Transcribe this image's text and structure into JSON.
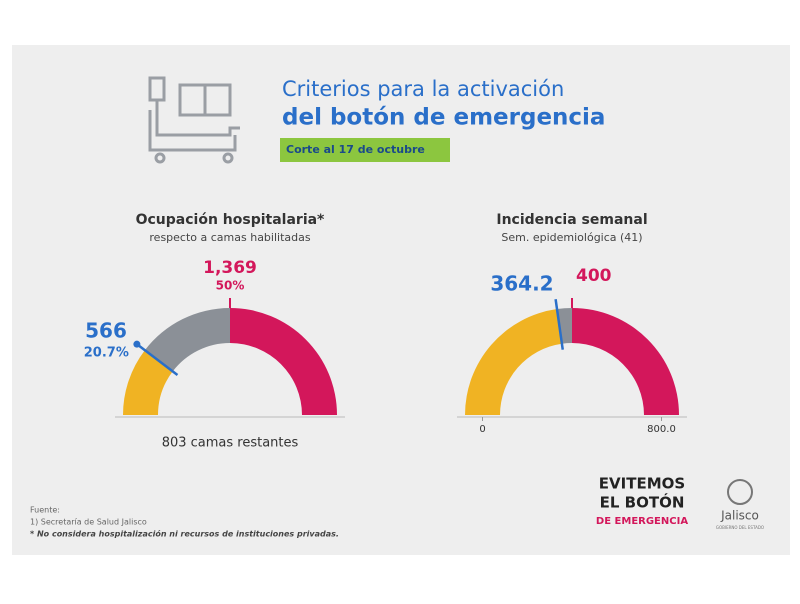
{
  "header": {
    "title_line1": "Criterios para la activación",
    "title_line2": "del botón de emergencia",
    "date": "Corte al 17 de octubre"
  },
  "chart_data": [
    {
      "type": "gauge",
      "title": "Ocupación hospitalaria*",
      "subtitle": "respecto a camas habilitadas",
      "values": [
        566,
        1369
      ],
      "value_labels": [
        "566",
        "1,369"
      ],
      "percents": [
        20.7,
        50
      ],
      "percent_labels": [
        "20.7%",
        "50%"
      ],
      "ylim": [
        0,
        100
      ],
      "note": "803 camas restantes",
      "segment_colors": [
        "#f0b323",
        "#8b9097",
        "#d3175b"
      ],
      "marker_color": "#2a6fc9",
      "threshold_color": "#d3175b"
    },
    {
      "type": "gauge",
      "title": "Incidencia semanal",
      "subtitle": "Sem. epidemiológica (41)",
      "values": [
        364.2,
        400
      ],
      "ylim": [
        0,
        800
      ],
      "yticks": [
        0,
        {
          "value": 800,
          "label": "800.0"
        }
      ],
      "segment_colors": [
        "#f0b323",
        "#8b9097",
        "#d3175b"
      ],
      "marker_color": "#2a6fc9",
      "threshold_color": "#d3175b"
    }
  ],
  "footer": {
    "source_title": "Fuente:",
    "source": "1) Secretaría de Salud Jalisco",
    "disclaimer": "* No considera hospitalización ni recursos de instituciones privadas.",
    "logo_lines": [
      "EVITEMOS",
      "EL BOTÓN",
      "DE EMERGENCIA"
    ],
    "brand": "Jalisco",
    "brand_sub": "GOBIERNO DEL ESTADO"
  }
}
